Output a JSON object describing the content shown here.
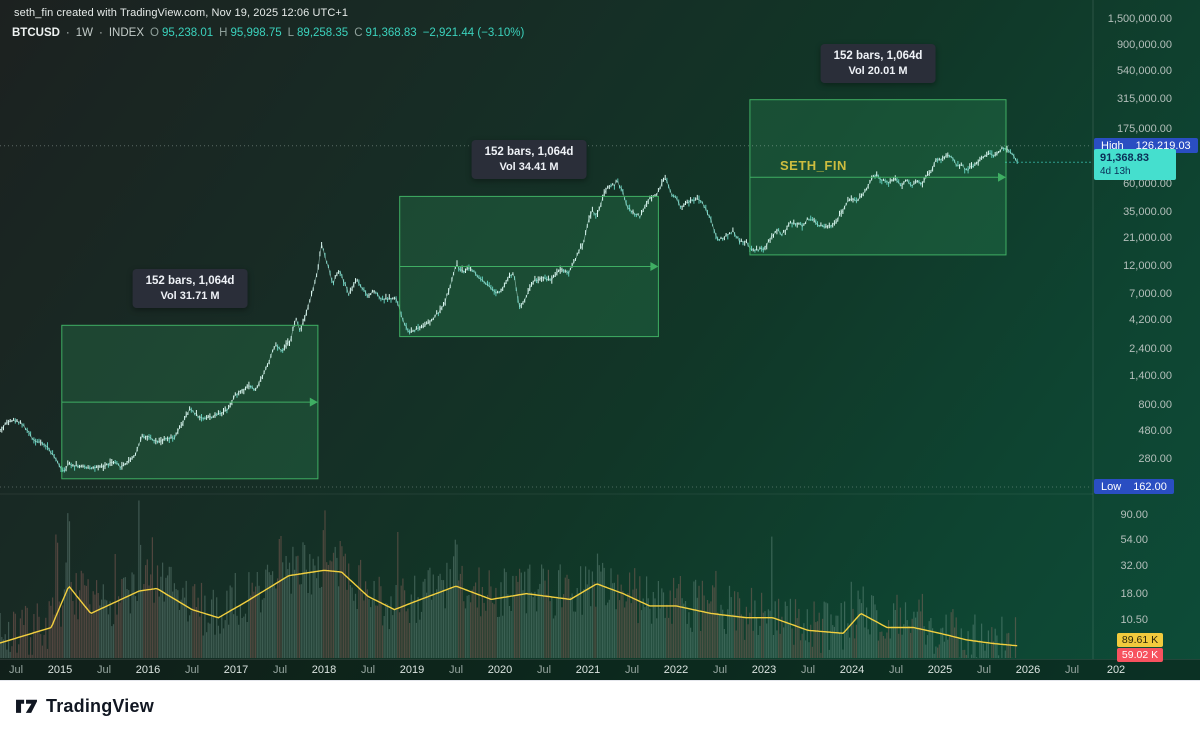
{
  "attribution": "seth_fin created with TradingView.com, Nov 19, 2025 12:06 UTC+1",
  "symbol": {
    "name": "BTCUSD",
    "separator": "·",
    "interval": "1W",
    "exchange": "INDEX",
    "ohlc": [
      {
        "label": "O",
        "value": "95,238.01"
      },
      {
        "label": "H",
        "value": "95,998.75"
      },
      {
        "label": "L",
        "value": "89,258.35"
      },
      {
        "label": "C",
        "value": "91,368.83"
      }
    ],
    "change": "−2,921.44 (−3.10%)"
  },
  "badges": {
    "high": {
      "label": "High",
      "value": "126,219.03"
    },
    "last": {
      "value": "91,368.83",
      "countdown": "4d 13h"
    },
    "low": {
      "label": "Low",
      "value": "162.00"
    },
    "vol_ma": {
      "value": "89.61 K"
    },
    "vol": {
      "value": "59.02 K"
    }
  },
  "measurements": [
    {
      "bars": "152 bars, 1,064d",
      "vol": "Vol 31.71 M",
      "t_start": 2015.02,
      "t_end": 2017.93,
      "price_top": 3800,
      "price_bottom": 190
    },
    {
      "bars": "152 bars, 1,064d",
      "vol": "Vol 34.41 M",
      "t_start": 2018.86,
      "t_end": 2021.8,
      "price_top": 47000,
      "price_bottom": 3050
    },
    {
      "bars": "152 bars, 1,064d",
      "vol": "Vol 20.01 M",
      "t_start": 2022.84,
      "t_end": 2025.75,
      "price_top": 310000,
      "price_bottom": 15000
    }
  ],
  "watermark": "SETH_FIN",
  "footer": {
    "brand": "TradingView"
  },
  "chart_data": {
    "type": "candlestick",
    "title": "BTCUSD 1W INDEX weekly log-scale chart with volume",
    "symbol": "BTCUSD",
    "interval": "1W",
    "scale": "log",
    "high": {
      "price": 126219.03
    },
    "low": {
      "price": 162.0
    },
    "last": {
      "price": 91368.83
    },
    "price_axis_labels": [
      {
        "text": "1,500,000.00",
        "price": 1500000
      },
      {
        "text": "900,000.00",
        "price": 900000
      },
      {
        "text": "540,000.00",
        "price": 540000
      },
      {
        "text": "315,000.00",
        "price": 315000
      },
      {
        "text": "175,000.00",
        "price": 175000
      },
      {
        "text": "60,000.00",
        "price": 60000
      },
      {
        "text": "35,000.00",
        "price": 35000
      },
      {
        "text": "21,000.00",
        "price": 21000
      },
      {
        "text": "12,000.00",
        "price": 12000
      },
      {
        "text": "7,000.00",
        "price": 7000
      },
      {
        "text": "4,200.00",
        "price": 4200
      },
      {
        "text": "2,400.00",
        "price": 2400
      },
      {
        "text": "1,400.00",
        "price": 1400
      },
      {
        "text": "800.00",
        "price": 800
      },
      {
        "text": "480.00",
        "price": 480
      },
      {
        "text": "280.00",
        "price": 280
      }
    ],
    "volume_axis_labels": [
      {
        "text": "90.00",
        "value": 90
      },
      {
        "text": "54.00",
        "value": 54
      },
      {
        "text": "32.00",
        "value": 32
      },
      {
        "text": "18.00",
        "value": 18
      },
      {
        "text": "10.50",
        "value": 10.5
      }
    ],
    "time_axis_labels": [
      {
        "text": "Jul",
        "t": 2014.5,
        "year": false
      },
      {
        "text": "2015",
        "t": 2015,
        "year": true
      },
      {
        "text": "Jul",
        "t": 2015.5,
        "year": false
      },
      {
        "text": "2016",
        "t": 2016,
        "year": true
      },
      {
        "text": "Jul",
        "t": 2016.5,
        "year": false
      },
      {
        "text": "2017",
        "t": 2017,
        "year": true
      },
      {
        "text": "Jul",
        "t": 2017.5,
        "year": false
      },
      {
        "text": "2018",
        "t": 2018,
        "year": true
      },
      {
        "text": "Jul",
        "t": 2018.5,
        "year": false
      },
      {
        "text": "2019",
        "t": 2019,
        "year": true
      },
      {
        "text": "Jul",
        "t": 2019.5,
        "year": false
      },
      {
        "text": "2020",
        "t": 2020,
        "year": true
      },
      {
        "text": "Jul",
        "t": 2020.5,
        "year": false
      },
      {
        "text": "2021",
        "t": 2021,
        "year": true
      },
      {
        "text": "Jul",
        "t": 2021.5,
        "year": false
      },
      {
        "text": "2022",
        "t": 2022,
        "year": true
      },
      {
        "text": "Jul",
        "t": 2022.5,
        "year": false
      },
      {
        "text": "2023",
        "t": 2023,
        "year": true
      },
      {
        "text": "Jul",
        "t": 2023.5,
        "year": false
      },
      {
        "text": "2024",
        "t": 2024,
        "year": true
      },
      {
        "text": "Jul",
        "t": 2024.5,
        "year": false
      },
      {
        "text": "2025",
        "t": 2025,
        "year": true
      },
      {
        "text": "Jul",
        "t": 2025.5,
        "year": false
      },
      {
        "text": "2026",
        "t": 2026,
        "year": true
      },
      {
        "text": "Jul",
        "t": 2026.5,
        "year": false
      },
      {
        "text": "202",
        "t": 2027,
        "year": true
      }
    ],
    "price_keypoints": [
      [
        2014.3,
        470
      ],
      [
        2014.42,
        600
      ],
      [
        2014.55,
        580
      ],
      [
        2014.7,
        410
      ],
      [
        2014.85,
        360
      ],
      [
        2015.04,
        220
      ],
      [
        2015.1,
        255
      ],
      [
        2015.25,
        240
      ],
      [
        2015.45,
        235
      ],
      [
        2015.6,
        262
      ],
      [
        2015.7,
        240
      ],
      [
        2015.85,
        300
      ],
      [
        2015.93,
        435
      ],
      [
        2016.0,
        432
      ],
      [
        2016.1,
        398
      ],
      [
        2016.3,
        420
      ],
      [
        2016.48,
        745
      ],
      [
        2016.6,
        620
      ],
      [
        2016.75,
        645
      ],
      [
        2016.9,
        735
      ],
      [
        2017.0,
        985
      ],
      [
        2017.15,
        1190
      ],
      [
        2017.22,
        1060
      ],
      [
        2017.35,
        1700
      ],
      [
        2017.45,
        2600
      ],
      [
        2017.52,
        2250
      ],
      [
        2017.62,
        2900
      ],
      [
        2017.68,
        4350
      ],
      [
        2017.73,
        3450
      ],
      [
        2017.85,
        6500
      ],
      [
        2017.93,
        11000
      ],
      [
        2017.97,
        18700
      ],
      [
        2018.02,
        14100
      ],
      [
        2018.1,
        8600
      ],
      [
        2018.17,
        11300
      ],
      [
        2018.28,
        7000
      ],
      [
        2018.37,
        9300
      ],
      [
        2018.5,
        6600
      ],
      [
        2018.57,
        7600
      ],
      [
        2018.65,
        6350
      ],
      [
        2018.82,
        6400
      ],
      [
        2018.9,
        4100
      ],
      [
        2018.97,
        3300
      ],
      [
        2019.05,
        3550
      ],
      [
        2019.2,
        4000
      ],
      [
        2019.35,
        5400
      ],
      [
        2019.45,
        8800
      ],
      [
        2019.5,
        12400
      ],
      [
        2019.58,
        10800
      ],
      [
        2019.65,
        11900
      ],
      [
        2019.75,
        9800
      ],
      [
        2019.85,
        8300
      ],
      [
        2019.95,
        7250
      ],
      [
        2020.0,
        7300
      ],
      [
        2020.1,
        9800
      ],
      [
        2020.16,
        10300
      ],
      [
        2020.22,
        5300
      ],
      [
        2020.3,
        6800
      ],
      [
        2020.38,
        9100
      ],
      [
        2020.5,
        9500
      ],
      [
        2020.58,
        9200
      ],
      [
        2020.68,
        11500
      ],
      [
        2020.78,
        10600
      ],
      [
        2020.85,
        13600
      ],
      [
        2020.95,
        19100
      ],
      [
        2021.0,
        29000
      ],
      [
        2021.05,
        35500
      ],
      [
        2021.1,
        32100
      ],
      [
        2021.18,
        48100
      ],
      [
        2021.23,
        57500
      ],
      [
        2021.3,
        59000
      ],
      [
        2021.33,
        63500
      ],
      [
        2021.4,
        50000
      ],
      [
        2021.45,
        37300
      ],
      [
        2021.55,
        33100
      ],
      [
        2021.6,
        31600
      ],
      [
        2021.65,
        40200
      ],
      [
        2021.72,
        47100
      ],
      [
        2021.78,
        48200
      ],
      [
        2021.85,
        64400
      ],
      [
        2021.88,
        67500
      ],
      [
        2021.95,
        48900
      ],
      [
        2022.0,
        47100
      ],
      [
        2022.05,
        38500
      ],
      [
        2022.15,
        42400
      ],
      [
        2022.25,
        45100
      ],
      [
        2022.32,
        39200
      ],
      [
        2022.4,
        29300
      ],
      [
        2022.47,
        20100
      ],
      [
        2022.55,
        21200
      ],
      [
        2022.65,
        24100
      ],
      [
        2022.72,
        19600
      ],
      [
        2022.8,
        19100
      ],
      [
        2022.87,
        16200
      ],
      [
        2022.95,
        16800
      ],
      [
        2023.0,
        16600
      ],
      [
        2023.08,
        21100
      ],
      [
        2023.15,
        24600
      ],
      [
        2023.2,
        22100
      ],
      [
        2023.3,
        28200
      ],
      [
        2023.4,
        27100
      ],
      [
        2023.45,
        26600
      ],
      [
        2023.5,
        30500
      ],
      [
        2023.55,
        30000
      ],
      [
        2023.65,
        26100
      ],
      [
        2023.75,
        26600
      ],
      [
        2023.82,
        28100
      ],
      [
        2023.88,
        35100
      ],
      [
        2023.95,
        42200
      ],
      [
        2024.0,
        44200
      ],
      [
        2024.05,
        42100
      ],
      [
        2024.12,
        48100
      ],
      [
        2024.2,
        62300
      ],
      [
        2024.23,
        68100
      ],
      [
        2024.28,
        71200
      ],
      [
        2024.35,
        64300
      ],
      [
        2024.42,
        61200
      ],
      [
        2024.5,
        67100
      ],
      [
        2024.55,
        57300
      ],
      [
        2024.62,
        65100
      ],
      [
        2024.68,
        58200
      ],
      [
        2024.75,
        63100
      ],
      [
        2024.8,
        60300
      ],
      [
        2024.85,
        69100
      ],
      [
        2024.9,
        76300
      ],
      [
        2024.95,
        97200
      ],
      [
        2025.0,
        94300
      ],
      [
        2025.05,
        102100
      ],
      [
        2025.1,
        104300
      ],
      [
        2025.15,
        97100
      ],
      [
        2025.2,
        84200
      ],
      [
        2025.25,
        86100
      ],
      [
        2025.3,
        78300
      ],
      [
        2025.38,
        85200
      ],
      [
        2025.45,
        95300
      ],
      [
        2025.5,
        104100
      ],
      [
        2025.55,
        108200
      ],
      [
        2025.6,
        103300
      ],
      [
        2025.65,
        109100
      ],
      [
        2025.7,
        118200
      ],
      [
        2025.75,
        121300
      ],
      [
        2025.78,
        115200
      ],
      [
        2025.82,
        110100
      ],
      [
        2025.85,
        101200
      ],
      [
        2025.88,
        91369
      ]
    ],
    "volume_profile_m": [
      [
        2014.3,
        6.5
      ],
      [
        2014.9,
        9
      ],
      [
        2015.1,
        21
      ],
      [
        2015.35,
        12
      ],
      [
        2015.9,
        19
      ],
      [
        2016.1,
        20
      ],
      [
        2016.5,
        13
      ],
      [
        2016.8,
        11
      ],
      [
        2017.1,
        15
      ],
      [
        2017.6,
        26
      ],
      [
        2018.0,
        29
      ],
      [
        2018.2,
        28
      ],
      [
        2018.5,
        17
      ],
      [
        2018.8,
        13
      ],
      [
        2019.1,
        16
      ],
      [
        2019.5,
        21
      ],
      [
        2019.9,
        16
      ],
      [
        2020.3,
        18
      ],
      [
        2020.8,
        16
      ],
      [
        2021.1,
        22
      ],
      [
        2021.4,
        18
      ],
      [
        2021.7,
        14
      ],
      [
        2022.0,
        14
      ],
      [
        2022.4,
        12
      ],
      [
        2022.8,
        11
      ],
      [
        2023.1,
        11
      ],
      [
        2023.5,
        8.5
      ],
      [
        2023.9,
        8
      ],
      [
        2024.1,
        12
      ],
      [
        2024.4,
        9
      ],
      [
        2024.7,
        9
      ],
      [
        2025.0,
        8
      ],
      [
        2025.3,
        7
      ],
      [
        2025.6,
        6.5
      ],
      [
        2025.88,
        6.2
      ]
    ]
  }
}
